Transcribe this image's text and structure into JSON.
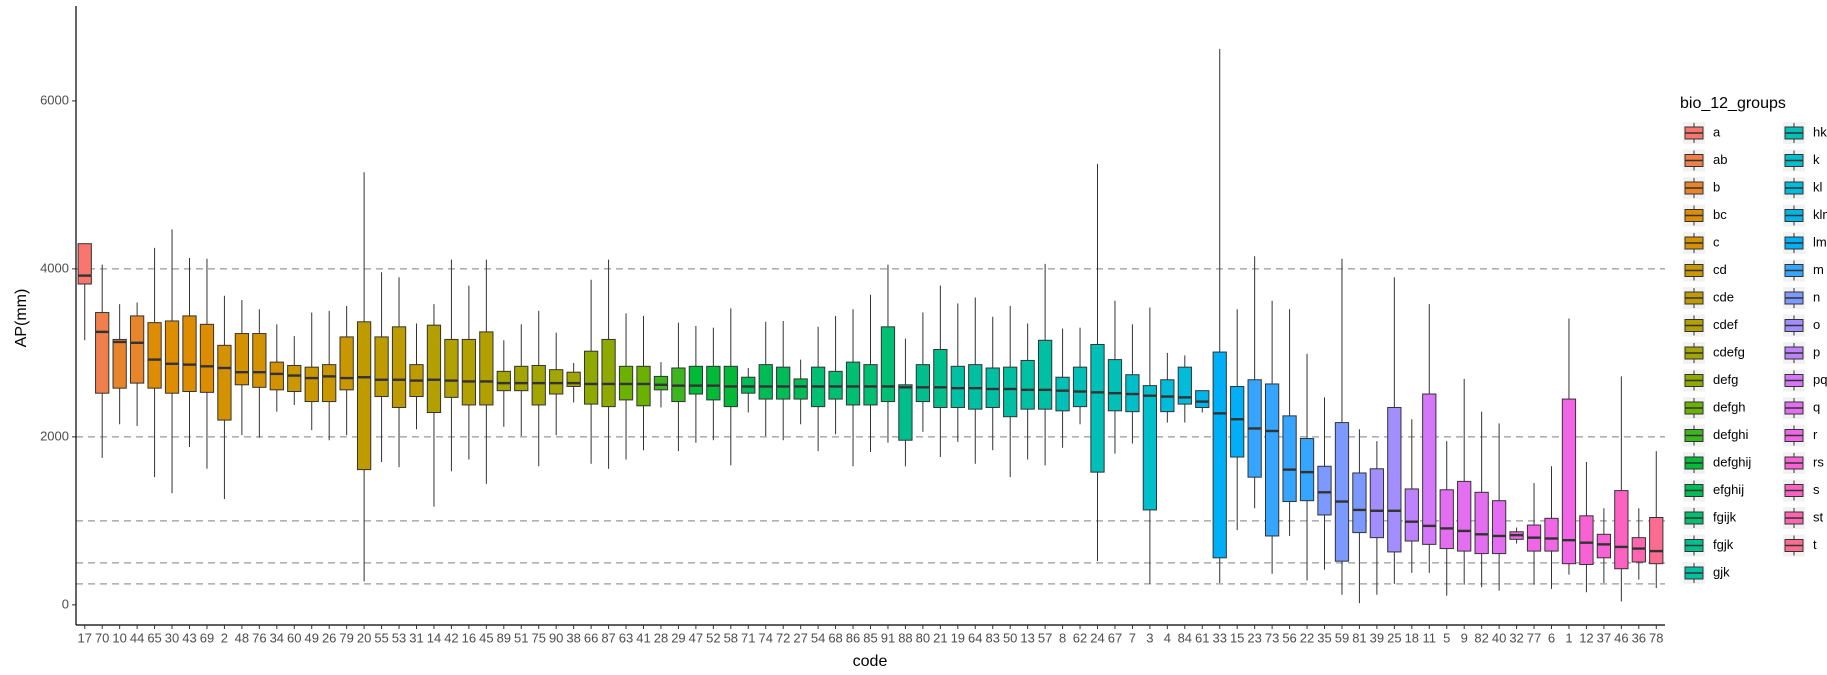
{
  "chart_data": {
    "type": "box",
    "x_label": "code",
    "y_label": "AP(mm)",
    "legend_title": "bio_12_groups",
    "ylim": [
      -240,
      7130
    ],
    "yticks": [
      0,
      2000,
      4000,
      6000
    ],
    "hlines": [
      250,
      500,
      1000,
      2000,
      4000
    ],
    "groups": [
      {
        "name": "a",
        "color": "#F8766D"
      },
      {
        "name": "ab",
        "color": "#F07F4A"
      },
      {
        "name": "b",
        "color": "#E8852B"
      },
      {
        "name": "bc",
        "color": "#DE8C00"
      },
      {
        "name": "c",
        "color": "#D59200"
      },
      {
        "name": "cd",
        "color": "#CB9700"
      },
      {
        "name": "cde",
        "color": "#BE9C00"
      },
      {
        "name": "cdef",
        "color": "#B1A000"
      },
      {
        "name": "cdefg",
        "color": "#A3A500"
      },
      {
        "name": "defg",
        "color": "#8FA900"
      },
      {
        "name": "defgh",
        "color": "#6BB100"
      },
      {
        "name": "defghi",
        "color": "#3CB61E"
      },
      {
        "name": "defghij",
        "color": "#00BA38"
      },
      {
        "name": "efghij",
        "color": "#00BC57"
      },
      {
        "name": "fgijk",
        "color": "#00BE72"
      },
      {
        "name": "fgjk",
        "color": "#00BF8C"
      },
      {
        "name": "gjk",
        "color": "#00C0A3"
      },
      {
        "name": "hk",
        "color": "#00C0B8"
      },
      {
        "name": "k",
        "color": "#00BECA"
      },
      {
        "name": "kl",
        "color": "#00BBDA"
      },
      {
        "name": "klm",
        "color": "#00B6E8"
      },
      {
        "name": "lm",
        "color": "#00AFF5"
      },
      {
        "name": "m",
        "color": "#35A5FF"
      },
      {
        "name": "n",
        "color": "#7C99FF"
      },
      {
        "name": "o",
        "color": "#A28EFF"
      },
      {
        "name": "p",
        "color": "#BF82FF"
      },
      {
        "name": "pq",
        "color": "#D577FA"
      },
      {
        "name": "q",
        "color": "#E46EF2"
      },
      {
        "name": "r",
        "color": "#F066E4"
      },
      {
        "name": "rs",
        "color": "#F962D4"
      },
      {
        "name": "s",
        "color": "#FD62C2"
      },
      {
        "name": "st",
        "color": "#FF66AF"
      },
      {
        "name": "t",
        "color": "#FF6C91"
      }
    ],
    "categories": [
      "17",
      "70",
      "10",
      "44",
      "65",
      "30",
      "43",
      "69",
      "2",
      "48",
      "76",
      "34",
      "60",
      "49",
      "26",
      "79",
      "20",
      "55",
      "53",
      "31",
      "14",
      "42",
      "16",
      "45",
      "89",
      "51",
      "75",
      "90",
      "38",
      "66",
      "87",
      "63",
      "41",
      "28",
      "29",
      "47",
      "52",
      "58",
      "71",
      "74",
      "72",
      "27",
      "54",
      "68",
      "86",
      "85",
      "91",
      "88",
      "80",
      "21",
      "19",
      "64",
      "83",
      "50",
      "13",
      "57",
      "8",
      "62",
      "24",
      "67",
      "7",
      "3",
      "4",
      "84",
      "61",
      "33",
      "15",
      "23",
      "73",
      "56",
      "22",
      "35",
      "59",
      "81",
      "39",
      "25",
      "18",
      "11",
      "5",
      "9",
      "82",
      "40",
      "32",
      "77",
      "6",
      "1",
      "12",
      "37",
      "46",
      "36",
      "78"
    ],
    "boxes": [
      {
        "group": "a",
        "min": 3150,
        "q1": 3820,
        "median": 3920,
        "q3": 4300,
        "max": 4300
      },
      {
        "group": "ab",
        "min": 1750,
        "q1": 2520,
        "median": 3250,
        "q3": 3480,
        "max": 4050
      },
      {
        "group": "b",
        "min": 2150,
        "q1": 2580,
        "median": 3130,
        "q3": 3160,
        "max": 3580
      },
      {
        "group": "b",
        "min": 2130,
        "q1": 2640,
        "median": 3120,
        "q3": 3440,
        "max": 3600
      },
      {
        "group": "bc",
        "min": 1520,
        "q1": 2580,
        "median": 2920,
        "q3": 3360,
        "max": 4250
      },
      {
        "group": "bc",
        "min": 1330,
        "q1": 2520,
        "median": 2870,
        "q3": 3380,
        "max": 4470
      },
      {
        "group": "bc",
        "min": 1880,
        "q1": 2540,
        "median": 2860,
        "q3": 3440,
        "max": 4130
      },
      {
        "group": "bc",
        "min": 1620,
        "q1": 2530,
        "median": 2840,
        "q3": 3340,
        "max": 4120
      },
      {
        "group": "c",
        "min": 1260,
        "q1": 2200,
        "median": 2820,
        "q3": 3090,
        "max": 3680
      },
      {
        "group": "c",
        "min": 2020,
        "q1": 2620,
        "median": 2770,
        "q3": 3230,
        "max": 3630
      },
      {
        "group": "c",
        "min": 1990,
        "q1": 2590,
        "median": 2770,
        "q3": 3230,
        "max": 3520
      },
      {
        "group": "c",
        "min": 2300,
        "q1": 2560,
        "median": 2750,
        "q3": 2890,
        "max": 3340
      },
      {
        "group": "cd",
        "min": 2380,
        "q1": 2540,
        "median": 2730,
        "q3": 2850,
        "max": 3200
      },
      {
        "group": "cd",
        "min": 2080,
        "q1": 2420,
        "median": 2700,
        "q3": 2830,
        "max": 3480
      },
      {
        "group": "cd",
        "min": 1960,
        "q1": 2420,
        "median": 2720,
        "q3": 2860,
        "max": 3500
      },
      {
        "group": "cd",
        "min": 2020,
        "q1": 2560,
        "median": 2700,
        "q3": 3190,
        "max": 3560
      },
      {
        "group": "cde",
        "min": 280,
        "q1": 1610,
        "median": 2710,
        "q3": 3370,
        "max": 5150
      },
      {
        "group": "cde",
        "min": 1700,
        "q1": 2480,
        "median": 2680,
        "q3": 3190,
        "max": 3960
      },
      {
        "group": "cde",
        "min": 1640,
        "q1": 2350,
        "median": 2680,
        "q3": 3310,
        "max": 3900
      },
      {
        "group": "cde",
        "min": 2090,
        "q1": 2480,
        "median": 2670,
        "q3": 2860,
        "max": 3350
      },
      {
        "group": "cdef",
        "min": 1170,
        "q1": 2290,
        "median": 2680,
        "q3": 3330,
        "max": 3580
      },
      {
        "group": "cdef",
        "min": 1590,
        "q1": 2470,
        "median": 2670,
        "q3": 3160,
        "max": 4110
      },
      {
        "group": "cdef",
        "min": 1730,
        "q1": 2380,
        "median": 2660,
        "q3": 3160,
        "max": 3800
      },
      {
        "group": "cdef",
        "min": 1440,
        "q1": 2380,
        "median": 2660,
        "q3": 3250,
        "max": 4110
      },
      {
        "group": "cdefg",
        "min": 2120,
        "q1": 2550,
        "median": 2640,
        "q3": 2780,
        "max": 3150
      },
      {
        "group": "cdefg",
        "min": 2010,
        "q1": 2550,
        "median": 2640,
        "q3": 2840,
        "max": 3340
      },
      {
        "group": "cdefg",
        "min": 1650,
        "q1": 2380,
        "median": 2640,
        "q3": 2850,
        "max": 3500
      },
      {
        "group": "cdefg",
        "min": 2020,
        "q1": 2510,
        "median": 2640,
        "q3": 2800,
        "max": 3240
      },
      {
        "group": "cdefg",
        "min": 2410,
        "q1": 2600,
        "median": 2640,
        "q3": 2770,
        "max": 2880
      },
      {
        "group": "defg",
        "min": 1680,
        "q1": 2390,
        "median": 2630,
        "q3": 3020,
        "max": 3870
      },
      {
        "group": "defg",
        "min": 1620,
        "q1": 2360,
        "median": 2630,
        "q3": 3160,
        "max": 4110
      },
      {
        "group": "defgh",
        "min": 1730,
        "q1": 2440,
        "median": 2630,
        "q3": 2840,
        "max": 3470
      },
      {
        "group": "defgh",
        "min": 1840,
        "q1": 2370,
        "median": 2630,
        "q3": 2840,
        "max": 3440
      },
      {
        "group": "defghi",
        "min": 2350,
        "q1": 2560,
        "median": 2620,
        "q3": 2720,
        "max": 2890
      },
      {
        "group": "defghi",
        "min": 1830,
        "q1": 2420,
        "median": 2610,
        "q3": 2820,
        "max": 3360
      },
      {
        "group": "defghij",
        "min": 1930,
        "q1": 2510,
        "median": 2610,
        "q3": 2840,
        "max": 3320
      },
      {
        "group": "defghij",
        "min": 1960,
        "q1": 2440,
        "median": 2610,
        "q3": 2840,
        "max": 3300
      },
      {
        "group": "defghij",
        "min": 1660,
        "q1": 2360,
        "median": 2600,
        "q3": 2840,
        "max": 3530
      },
      {
        "group": "efghij",
        "min": 2290,
        "q1": 2520,
        "median": 2600,
        "q3": 2710,
        "max": 2820
      },
      {
        "group": "efghij",
        "min": 2010,
        "q1": 2450,
        "median": 2600,
        "q3": 2860,
        "max": 3370
      },
      {
        "group": "efghij",
        "min": 1960,
        "q1": 2450,
        "median": 2600,
        "q3": 2830,
        "max": 3380
      },
      {
        "group": "efghij",
        "min": 2150,
        "q1": 2450,
        "median": 2600,
        "q3": 2690,
        "max": 2920
      },
      {
        "group": "fgijk",
        "min": 1830,
        "q1": 2360,
        "median": 2600,
        "q3": 2830,
        "max": 3310
      },
      {
        "group": "fgijk",
        "min": 2030,
        "q1": 2450,
        "median": 2600,
        "q3": 2780,
        "max": 3440
      },
      {
        "group": "fgijk",
        "min": 1650,
        "q1": 2380,
        "median": 2600,
        "q3": 2890,
        "max": 3520
      },
      {
        "group": "fgijk",
        "min": 1820,
        "q1": 2380,
        "median": 2600,
        "q3": 2860,
        "max": 3690
      },
      {
        "group": "fgijk",
        "min": 1930,
        "q1": 2420,
        "median": 2600,
        "q3": 3310,
        "max": 4050
      },
      {
        "group": "fgjk",
        "min": 1650,
        "q1": 1960,
        "median": 2590,
        "q3": 2620,
        "max": 3170
      },
      {
        "group": "fgjk",
        "min": 2060,
        "q1": 2420,
        "median": 2590,
        "q3": 2860,
        "max": 3480
      },
      {
        "group": "fgjk",
        "min": 1760,
        "q1": 2350,
        "median": 2590,
        "q3": 3040,
        "max": 3800
      },
      {
        "group": "gjk",
        "min": 1940,
        "q1": 2350,
        "median": 2580,
        "q3": 2840,
        "max": 3590
      },
      {
        "group": "gjk",
        "min": 1680,
        "q1": 2330,
        "median": 2580,
        "q3": 2860,
        "max": 3660
      },
      {
        "group": "gjk",
        "min": 1840,
        "q1": 2350,
        "median": 2570,
        "q3": 2820,
        "max": 3430
      },
      {
        "group": "gjk",
        "min": 1520,
        "q1": 2240,
        "median": 2570,
        "q3": 2830,
        "max": 3560
      },
      {
        "group": "gjk",
        "min": 1730,
        "q1": 2330,
        "median": 2560,
        "q3": 2910,
        "max": 3350
      },
      {
        "group": "gjk",
        "min": 1660,
        "q1": 2330,
        "median": 2560,
        "q3": 3150,
        "max": 4060
      },
      {
        "group": "hk",
        "min": 1870,
        "q1": 2310,
        "median": 2550,
        "q3": 2710,
        "max": 3290
      },
      {
        "group": "hk",
        "min": 2150,
        "q1": 2360,
        "median": 2540,
        "q3": 2830,
        "max": 3300
      },
      {
        "group": "hk",
        "min": 520,
        "q1": 1580,
        "median": 2530,
        "q3": 3100,
        "max": 5250
      },
      {
        "group": "hk",
        "min": 1800,
        "q1": 2310,
        "median": 2520,
        "q3": 2920,
        "max": 3620
      },
      {
        "group": "k",
        "min": 1920,
        "q1": 2300,
        "median": 2510,
        "q3": 2740,
        "max": 3340
      },
      {
        "group": "k",
        "min": 250,
        "q1": 1130,
        "median": 2490,
        "q3": 2610,
        "max": 3540
      },
      {
        "group": "kl",
        "min": 2170,
        "q1": 2300,
        "median": 2480,
        "q3": 2680,
        "max": 3000
      },
      {
        "group": "kl",
        "min": 2170,
        "q1": 2390,
        "median": 2470,
        "q3": 2830,
        "max": 2970
      },
      {
        "group": "klm",
        "min": 2290,
        "q1": 2350,
        "median": 2420,
        "q3": 2550,
        "max": 2550
      },
      {
        "group": "lm",
        "min": 260,
        "q1": 560,
        "median": 2280,
        "q3": 3010,
        "max": 6620
      },
      {
        "group": "lm",
        "min": 890,
        "q1": 1760,
        "median": 2210,
        "q3": 2600,
        "max": 3520
      },
      {
        "group": "m",
        "min": 1150,
        "q1": 1520,
        "median": 2100,
        "q3": 2680,
        "max": 4150
      },
      {
        "group": "m",
        "min": 370,
        "q1": 820,
        "median": 2070,
        "q3": 2630,
        "max": 3620
      },
      {
        "group": "m",
        "min": 820,
        "q1": 1230,
        "median": 1610,
        "q3": 2250,
        "max": 3520
      },
      {
        "group": "m",
        "min": 290,
        "q1": 1240,
        "median": 1580,
        "q3": 1980,
        "max": 2990
      },
      {
        "group": "n",
        "min": 420,
        "q1": 1070,
        "median": 1340,
        "q3": 1650,
        "max": 2470
      },
      {
        "group": "n",
        "min": 120,
        "q1": 520,
        "median": 1230,
        "q3": 2170,
        "max": 4120
      },
      {
        "group": "n",
        "min": 20,
        "q1": 860,
        "median": 1130,
        "q3": 1570,
        "max": 2090
      },
      {
        "group": "o",
        "min": 120,
        "q1": 800,
        "median": 1120,
        "q3": 1620,
        "max": 1950
      },
      {
        "group": "o",
        "min": 250,
        "q1": 630,
        "median": 1120,
        "q3": 2350,
        "max": 3900
      },
      {
        "group": "p",
        "min": 380,
        "q1": 760,
        "median": 990,
        "q3": 1380,
        "max": 2210
      },
      {
        "group": "pq",
        "min": 380,
        "q1": 720,
        "median": 940,
        "q3": 2510,
        "max": 3580
      },
      {
        "group": "q",
        "min": 110,
        "q1": 670,
        "median": 910,
        "q3": 1370,
        "max": 1950
      },
      {
        "group": "q",
        "min": 240,
        "q1": 640,
        "median": 880,
        "q3": 1470,
        "max": 2690
      },
      {
        "group": "q",
        "min": 210,
        "q1": 610,
        "median": 840,
        "q3": 1340,
        "max": 2300
      },
      {
        "group": "q",
        "min": 170,
        "q1": 610,
        "median": 820,
        "q3": 1240,
        "max": 2160
      },
      {
        "group": "r",
        "min": 730,
        "q1": 780,
        "median": 830,
        "q3": 870,
        "max": 920
      },
      {
        "group": "r",
        "min": 240,
        "q1": 640,
        "median": 800,
        "q3": 950,
        "max": 1450
      },
      {
        "group": "r",
        "min": 190,
        "q1": 640,
        "median": 790,
        "q3": 1030,
        "max": 1650
      },
      {
        "group": "r",
        "min": 360,
        "q1": 490,
        "median": 770,
        "q3": 2450,
        "max": 3410
      },
      {
        "group": "rs",
        "min": 150,
        "q1": 480,
        "median": 740,
        "q3": 1060,
        "max": 1700
      },
      {
        "group": "rs",
        "min": 260,
        "q1": 560,
        "median": 720,
        "q3": 840,
        "max": 1150
      },
      {
        "group": "s",
        "min": 40,
        "q1": 430,
        "median": 690,
        "q3": 1360,
        "max": 2720
      },
      {
        "group": "st",
        "min": 300,
        "q1": 510,
        "median": 670,
        "q3": 800,
        "max": 1150
      },
      {
        "group": "t",
        "min": 200,
        "q1": 490,
        "median": 640,
        "q3": 1040,
        "max": 1830
      }
    ]
  }
}
